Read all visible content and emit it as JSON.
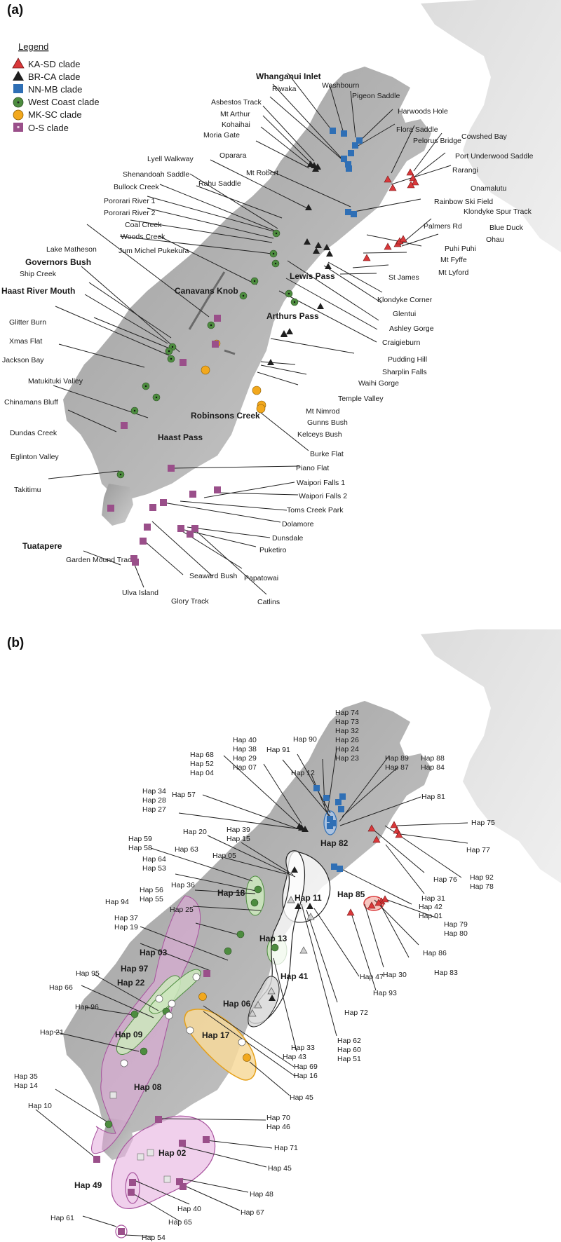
{
  "panel_a": {
    "label": "(a)",
    "legend": {
      "title": "Legend",
      "items": [
        {
          "name": "KA-SD clade",
          "symbol": "triangle",
          "color": "#d9383a"
        },
        {
          "name": "BR-CA clade",
          "symbol": "triangle",
          "color": "#1f1f1f"
        },
        {
          "name": "NN-MB clade",
          "symbol": "square",
          "color": "#2f6fb5"
        },
        {
          "name": "West Coast clade",
          "symbol": "circle",
          "color": "#4d8c3f"
        },
        {
          "name": "MK-SC clade",
          "symbol": "circle",
          "color": "#f2a81d"
        },
        {
          "name": "O-S clade",
          "symbol": "square",
          "color": "#9a4f8a"
        }
      ]
    },
    "regions": [
      "Whanganui Inlet",
      "Governors Bush",
      "Haast River Mouth",
      "Canavans Knob",
      "Lewis Pass",
      "Arthurs Pass",
      "Robinsons Creek",
      "Haast Pass",
      "Tuatapere"
    ],
    "sites": [
      "Washbourn",
      "Riwaka",
      "Pigeon Saddle",
      "Asbestos Track",
      "Harwoods Hole",
      "Mt Arthur",
      "Flora Saddle",
      "Kohaihai",
      "Pelorus Bridge",
      "Cowshed Bay",
      "Moria Gate",
      "Port Underwood Saddle",
      "Oparara",
      "Rarangi",
      "Lyell Walkway",
      "Mt Robert",
      "Onamalutu",
      "Shenandoah Saddle",
      "Rahu Saddle",
      "Bullock Creek",
      "Rainbow Ski Field",
      "Klondyke Spur Track",
      "Pororari River 1",
      "Pororari River 2",
      "Coal Creek",
      "Palmers Rd",
      "Blue Duck",
      "Woods Creek",
      "Ohau",
      "Puhi Puhi",
      "Jum Michel Pukekura",
      "Mt Fyffe",
      "Lake Matheson",
      "Mt Lyford",
      "St James",
      "Ship Creek",
      "Klondyke Corner",
      "Glentui",
      "Glitter Burn",
      "Ashley Gorge",
      "Xmas Flat",
      "Craigieburn",
      "Jackson Bay",
      "Pudding Hill",
      "Sharplin Falls",
      "Waihi Gorge",
      "Matukituki Valley",
      "Temple Valley",
      "Chinamans Bluff",
      "Mt Nimrod",
      "Gunns Bush",
      "Dundas Creek",
      "Kelceys Bush",
      "Eglinton Valley",
      "Burke Flat",
      "Piano Flat",
      "Takitimu",
      "Waipori Falls 1",
      "Waipori Falls 2",
      "Toms Creek Park",
      "Dolamore",
      "Dunsdale",
      "Garden Mound Track",
      "Puketiro",
      "Papatowai",
      "Seaward Bush",
      "Ulva Island",
      "Glory Track",
      "Catlins"
    ]
  },
  "panel_b": {
    "label": "(b)",
    "groups": [
      "Hap 82",
      "Hap 11",
      "Hap 85",
      "Hap 18",
      "Hap 13",
      "Hap 41",
      "Hap 03",
      "Hap 97",
      "Hap 22",
      "Hap 06",
      "Hap 17",
      "Hap 09",
      "Hap 08",
      "Hap 02",
      "Hap 49"
    ],
    "haplotypes": {
      "north_top": [
        "Hap 74",
        "Hap 73",
        "Hap 32",
        "Hap 26",
        "Hap 24",
        "Hap 23"
      ],
      "h40": [
        "Hap 40",
        "Hap 38",
        "Hap 29",
        "Hap 07"
      ],
      "h68": [
        "Hap 68",
        "Hap 52",
        "Hap 04"
      ],
      "h34": [
        "Hap 34",
        "Hap 28",
        "Hap 27"
      ],
      "h89": [
        "Hap 89",
        "Hap 87"
      ],
      "h88": [
        "Hap 88",
        "Hap 84"
      ],
      "h39": [
        "Hap 39",
        "Hap 15"
      ],
      "h59": [
        "Hap 59",
        "Hap 58"
      ],
      "h64": [
        "Hap 64",
        "Hap 53"
      ],
      "h56": [
        "Hap 56",
        "Hap 55"
      ],
      "h37": [
        "Hap 37",
        "Hap 19"
      ],
      "h42": [
        "Hap 42",
        "Hap 01"
      ],
      "h79": [
        "Hap 79",
        "Hap 80"
      ],
      "h92": [
        "Hap 92",
        "Hap 78"
      ],
      "h62": [
        "Hap 62",
        "Hap 60",
        "Hap 51"
      ],
      "h69": [
        "Hap 69",
        "Hap 16"
      ],
      "h35": [
        "Hap 35",
        "Hap 14"
      ],
      "h70": [
        "Hap 70",
        "Hap 46"
      ],
      "singles": [
        "Hap 90",
        "Hap 91",
        "Hap 12",
        "Hap 57",
        "Hap 81",
        "Hap 75",
        "Hap 77",
        "Hap 20",
        "Hap 63",
        "Hap 05",
        "Hap 76",
        "Hap 36",
        "Hap 31",
        "Hap 25",
        "Hap 94",
        "Hap 86",
        "Hap 83",
        "Hap 30",
        "Hap 93",
        "Hap 47",
        "Hap 72",
        "Hap 95",
        "Hap 66",
        "Hap 96",
        "Hap 21",
        "Hap 33",
        "Hap 43",
        "Hap 45",
        "Hap 10",
        "Hap 71",
        "Hap 45",
        "Hap 48",
        "Hap 61",
        "Hap 40",
        "Hap 65",
        "Hap 67",
        "Hap 54"
      ]
    }
  }
}
